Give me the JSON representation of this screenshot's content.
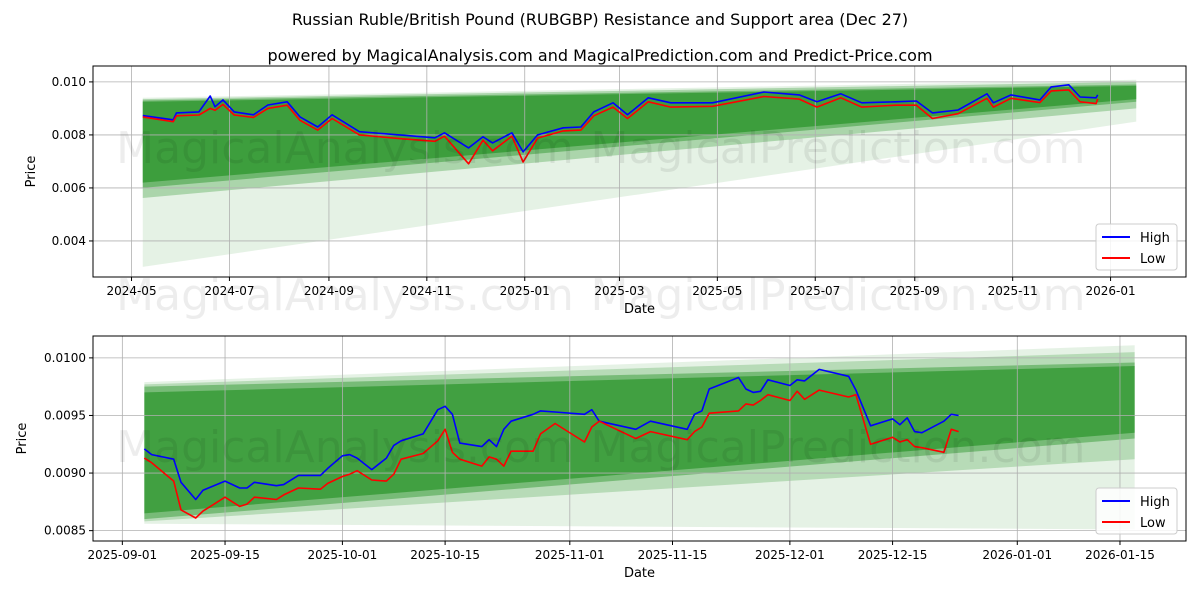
{
  "title": "Russian Ruble/British Pound (RUBGBP) Resistance and Support area (Dec 27)",
  "subtitle": "powered by MagicalAnalysis.com and MagicalPrediction.com and Predict-Price.com",
  "watermarks": [
    "MagicalAnalysis.com",
    "MagicalPrediction.com"
  ],
  "colors": {
    "high": "#0000ff",
    "low": "#ff0000",
    "band": "#008000",
    "grid": "#b0b0b0"
  },
  "chart_data": [
    {
      "type": "line",
      "xlabel": "Date",
      "ylabel": "Price",
      "xlim": [
        "2024-04-07",
        "2026-02-17"
      ],
      "ylim": [
        0.00264,
        0.0106
      ],
      "grid": true,
      "legend": {
        "placement": "lower-right",
        "entries": [
          "High",
          "Low"
        ]
      },
      "yticks": [
        0.004,
        0.006,
        0.008,
        0.01
      ],
      "ytick_labels": [
        "0.004",
        "0.006",
        "0.008",
        "0.010"
      ],
      "xticks": [
        "2024-05-01",
        "2024-07-01",
        "2024-09-01",
        "2024-11-01",
        "2025-01-01",
        "2025-03-01",
        "2025-05-01",
        "2025-07-01",
        "2025-09-01",
        "2025-11-01",
        "2026-01-01"
      ],
      "xtick_labels": [
        "2024-05",
        "2024-07",
        "2024-09",
        "2024-11",
        "2025-01",
        "2025-03",
        "2025-05",
        "2025-07",
        "2025-09",
        "2025-11",
        "2026-01"
      ],
      "bands": [
        {
          "start": "2024-05-08",
          "end": "2026-01-17",
          "upper": [
            0.0094,
            0.01008
          ],
          "lower": [
            0.00302,
            0.0085
          ],
          "opacity": 0.1
        },
        {
          "start": "2024-05-08",
          "end": "2026-01-17",
          "upper": [
            0.00935,
            0.01
          ],
          "lower": [
            0.00562,
            0.009
          ],
          "opacity": 0.25
        },
        {
          "start": "2024-05-08",
          "end": "2026-01-17",
          "upper": [
            0.0093,
            0.0099
          ],
          "lower": [
            0.006,
            0.00925
          ],
          "opacity": 0.35
        },
        {
          "start": "2024-05-08",
          "end": "2026-01-17",
          "upper": [
            0.00925,
            0.00985
          ],
          "lower": [
            0.0062,
            0.00935
          ],
          "opacity": 0.45
        }
      ],
      "x": [
        "2024-05-08",
        "2024-05-27",
        "2024-05-29",
        "2024-06-12",
        "2024-06-19",
        "2024-06-22",
        "2024-06-27",
        "2024-07-04",
        "2024-07-16",
        "2024-07-25",
        "2024-08-06",
        "2024-08-14",
        "2024-08-25",
        "2024-09-03",
        "2024-09-20",
        "2024-10-15",
        "2024-11-06",
        "2024-11-12",
        "2024-11-27",
        "2024-12-06",
        "2024-12-12",
        "2024-12-24",
        "2024-12-31",
        "2025-01-09",
        "2025-01-25",
        "2025-02-05",
        "2025-02-13",
        "2025-02-25",
        "2025-03-06",
        "2025-03-19",
        "2025-04-02",
        "2025-04-28",
        "2025-05-30",
        "2025-06-21",
        "2025-07-02",
        "2025-07-17",
        "2025-07-30",
        "2025-08-20",
        "2025-09-02",
        "2025-09-12",
        "2025-09-28",
        "2025-10-16",
        "2025-10-20",
        "2025-10-31",
        "2025-11-18",
        "2025-11-25",
        "2025-12-06",
        "2025-12-13",
        "2025-12-23",
        "2025-12-24"
      ],
      "series": [
        {
          "name": "High",
          "values": [
            0.00873,
            0.00857,
            0.00883,
            0.00887,
            0.00947,
            0.00906,
            0.00932,
            0.00887,
            0.00876,
            0.00913,
            0.00925,
            0.00868,
            0.0083,
            0.00876,
            0.00812,
            0.008,
            0.00789,
            0.00808,
            0.00751,
            0.00793,
            0.0077,
            0.00808,
            0.00736,
            0.008,
            0.00827,
            0.0083,
            0.00887,
            0.00921,
            0.00876,
            0.0094,
            0.00921,
            0.00921,
            0.00962,
            0.00951,
            0.00925,
            0.00955,
            0.00921,
            0.00925,
            0.00928,
            0.00883,
            0.00894,
            0.00955,
            0.00921,
            0.00951,
            0.00932,
            0.00981,
            0.00989,
            0.00943,
            0.0094,
            0.00951
          ]
        },
        {
          "name": "Low",
          "values": [
            0.00868,
            0.0085,
            0.00872,
            0.00875,
            0.009,
            0.00893,
            0.00915,
            0.00875,
            0.00866,
            0.009,
            0.00912,
            0.00855,
            0.00818,
            0.00862,
            0.008,
            0.00786,
            0.00776,
            0.00795,
            0.00691,
            0.0078,
            0.0074,
            0.00795,
            0.00698,
            0.00788,
            0.00815,
            0.00818,
            0.00872,
            0.00905,
            0.00862,
            0.00925,
            0.00905,
            0.00908,
            0.00945,
            0.00935,
            0.00905,
            0.0094,
            0.00905,
            0.00912,
            0.00912,
            0.00862,
            0.0088,
            0.00938,
            0.00905,
            0.00938,
            0.00922,
            0.00966,
            0.0097,
            0.00925,
            0.00918,
            0.00936
          ]
        }
      ]
    },
    {
      "type": "line",
      "xlabel": "Date",
      "ylabel": "Price",
      "xlim": [
        "2025-08-28",
        "2026-01-24"
      ],
      "ylim": [
        0.00841,
        0.01019
      ],
      "grid": true,
      "legend": {
        "placement": "lower-right",
        "entries": [
          "High",
          "Low"
        ]
      },
      "yticks": [
        0.0085,
        0.009,
        0.0095,
        0.01
      ],
      "ytick_labels": [
        "0.0085",
        "0.0090",
        "0.0095",
        "0.0100"
      ],
      "xticks": [
        "2025-09-01",
        "2025-09-15",
        "2025-10-01",
        "2025-10-15",
        "2025-11-01",
        "2025-11-15",
        "2025-12-01",
        "2025-12-15",
        "2026-01-01",
        "2026-01-15"
      ],
      "xtick_labels": [
        "2025-09-01",
        "2025-09-15",
        "2025-10-01",
        "2025-10-15",
        "2025-11-01",
        "2025-11-15",
        "2025-12-01",
        "2025-12-15",
        "2026-01-01",
        "2026-01-15"
      ],
      "bands": [
        {
          "start": "2025-09-04",
          "end": "2026-01-17",
          "upper": [
            0.00979,
            0.01011
          ],
          "lower": [
            0.00856,
            0.00851
          ],
          "opacity": 0.1
        },
        {
          "start": "2025-09-04",
          "end": "2026-01-17",
          "upper": [
            0.00977,
            0.01005
          ],
          "lower": [
            0.00858,
            0.00912
          ],
          "opacity": 0.2
        },
        {
          "start": "2025-09-04",
          "end": "2026-01-17",
          "upper": [
            0.00975,
            0.00996
          ],
          "lower": [
            0.0086,
            0.0093
          ],
          "opacity": 0.35
        },
        {
          "start": "2025-09-04",
          "end": "2026-01-17",
          "upper": [
            0.0097,
            0.00993
          ],
          "lower": [
            0.00865,
            0.00935
          ],
          "opacity": 0.45
        }
      ],
      "x": [
        "2025-09-04",
        "2025-09-05",
        "2025-09-08",
        "2025-09-09",
        "2025-09-11",
        "2025-09-12",
        "2025-09-15",
        "2025-09-17",
        "2025-09-18",
        "2025-09-19",
        "2025-09-22",
        "2025-09-23",
        "2025-09-25",
        "2025-09-28",
        "2025-09-29",
        "2025-10-01",
        "2025-10-02",
        "2025-10-03",
        "2025-10-05",
        "2025-10-07",
        "2025-10-08",
        "2025-10-09",
        "2025-10-12",
        "2025-10-14",
        "2025-10-15",
        "2025-10-16",
        "2025-10-17",
        "2025-10-20",
        "2025-10-21",
        "2025-10-22",
        "2025-10-23",
        "2025-10-24",
        "2025-10-27",
        "2025-10-28",
        "2025-10-30",
        "2025-11-03",
        "2025-11-04",
        "2025-11-05",
        "2025-11-10",
        "2025-11-12",
        "2025-11-17",
        "2025-11-18",
        "2025-11-19",
        "2025-11-20",
        "2025-11-24",
        "2025-11-25",
        "2025-11-26",
        "2025-11-27",
        "2025-11-28",
        "2025-12-01",
        "2025-12-02",
        "2025-12-03",
        "2025-12-05",
        "2025-12-09",
        "2025-12-10",
        "2025-12-12",
        "2025-12-15",
        "2025-12-16",
        "2025-12-17",
        "2025-12-18",
        "2025-12-19",
        "2025-12-22",
        "2025-12-23",
        "2025-12-24"
      ],
      "series": [
        {
          "name": "High",
          "values": [
            0.00921,
            0.00916,
            0.00912,
            0.00892,
            0.00877,
            0.00885,
            0.00893,
            0.00887,
            0.00887,
            0.00892,
            0.00889,
            0.0089,
            0.00898,
            0.00898,
            0.00904,
            0.00915,
            0.00916,
            0.00913,
            0.00903,
            0.00913,
            0.00924,
            0.00928,
            0.00934,
            0.00955,
            0.00958,
            0.00951,
            0.00926,
            0.00923,
            0.00929,
            0.00923,
            0.00938,
            0.00945,
            0.00951,
            0.00954,
            0.00953,
            0.00951,
            0.00955,
            0.00945,
            0.00938,
            0.00945,
            0.00938,
            0.00951,
            0.00954,
            0.00973,
            0.00983,
            0.00973,
            0.0097,
            0.00971,
            0.00981,
            0.00976,
            0.00981,
            0.0098,
            0.0099,
            0.00984,
            0.00972,
            0.00941,
            0.00947,
            0.00942,
            0.00948,
            0.00936,
            0.00935,
            0.00945,
            0.00951,
            0.0095
          ]
        },
        {
          "name": "Low",
          "values": [
            0.00913,
            0.00909,
            0.00893,
            0.00868,
            0.00861,
            0.00867,
            0.00879,
            0.00871,
            0.00873,
            0.00879,
            0.00877,
            0.00881,
            0.00887,
            0.00886,
            0.00891,
            0.00897,
            0.00899,
            0.00902,
            0.00894,
            0.00893,
            0.00899,
            0.00912,
            0.00917,
            0.00928,
            0.00938,
            0.00918,
            0.00912,
            0.00906,
            0.00914,
            0.00912,
            0.00906,
            0.00919,
            0.00919,
            0.00934,
            0.00943,
            0.00927,
            0.0094,
            0.00945,
            0.0093,
            0.00936,
            0.00929,
            0.00936,
            0.0094,
            0.00952,
            0.00954,
            0.0096,
            0.00959,
            0.00963,
            0.00968,
            0.00963,
            0.00971,
            0.00964,
            0.00972,
            0.00966,
            0.00968,
            0.00925,
            0.00931,
            0.00927,
            0.00929,
            0.00923,
            0.00922,
            0.00918,
            0.00938,
            0.00936
          ]
        }
      ]
    }
  ]
}
